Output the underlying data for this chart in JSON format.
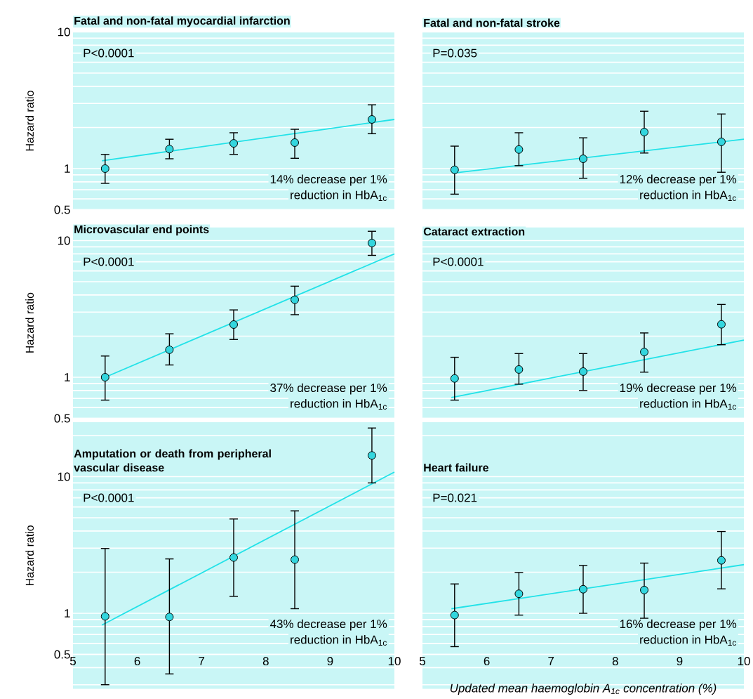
{
  "chart_data": [
    {
      "type": "scatter",
      "title": "Fatal and non-fatal myocardial infarction",
      "ylabel": "Hazard ratio",
      "annotations": [
        "P<0.0001",
        "14% decrease per 1%",
        "reduction in HbA$_{1c}$"
      ],
      "x": [
        5.5,
        6.5,
        7.5,
        8.45,
        9.65
      ],
      "xlim": [
        5,
        10
      ],
      "xticks": [
        5,
        6,
        7,
        8,
        9,
        10
      ],
      "ylim": [
        0.5,
        10
      ],
      "yticks": [
        0.5,
        1,
        10
      ],
      "log": "y",
      "grid": "y",
      "marker": "circle",
      "tick_labels": "y",
      "series": [
        {
          "color": "#33d6de",
          "values": [
            1.0,
            1.39,
            1.53,
            1.55,
            2.29
          ],
          "errors": [
            [
              0.78,
              1.27
            ],
            [
              1.18,
              1.64
            ],
            [
              1.27,
              1.83
            ],
            [
              1.19,
              1.94
            ],
            [
              1.8,
              2.93
            ]
          ]
        },
        {
          "type": "line",
          "color": "#22e2e8",
          "line_style": "solid",
          "marker": "none",
          "x": [
            5.45,
            10
          ],
          "values": [
            1.14,
            2.29
          ]
        }
      ]
    },
    {
      "type": "scatter",
      "title": "Fatal and non-fatal stroke",
      "annotations": [
        "P=0.035",
        "12% decrease per 1%",
        "reduction in HbA$_{1c}$"
      ],
      "x": [
        5.5,
        6.5,
        7.5,
        8.45,
        9.65
      ],
      "xlim": [
        5,
        10
      ],
      "xticks": [
        5,
        6,
        7,
        8,
        9,
        10
      ],
      "ylim": [
        0.5,
        10
      ],
      "yticks": [
        0.5,
        1,
        10
      ],
      "log": "y",
      "grid": "y",
      "marker": "circle",
      "tick_labels": false,
      "series": [
        {
          "color": "#33d6de",
          "values": [
            0.98,
            1.38,
            1.18,
            1.85,
            1.57
          ],
          "errors": [
            [
              0.65,
              1.46
            ],
            [
              1.05,
              1.83
            ],
            [
              0.85,
              1.68
            ],
            [
              1.3,
              2.63
            ],
            [
              0.94,
              2.51
            ]
          ]
        },
        {
          "type": "line",
          "color": "#22e2e8",
          "line_style": "solid",
          "marker": "none",
          "x": [
            5.5,
            10
          ],
          "values": [
            0.93,
            1.64
          ]
        }
      ]
    },
    {
      "type": "scatter",
      "title": "Microvascular end points",
      "ylabel": "Hazard ratio",
      "annotations": [
        "P<0.0001",
        "37% decrease per 1%",
        "reduction in HbA$_{1c}$"
      ],
      "x": [
        5.5,
        6.5,
        7.5,
        8.45,
        9.65
      ],
      "xlim": [
        5,
        10
      ],
      "xticks": [
        5,
        6,
        7,
        8,
        9,
        10
      ],
      "ylim": [
        0.5,
        12.5
      ],
      "yticks": [
        0.5,
        1,
        10
      ],
      "log": "y",
      "grid": "y",
      "marker": "circle",
      "tick_labels": "y",
      "series": [
        {
          "color": "#33d6de",
          "values": [
            1.0,
            1.59,
            2.43,
            3.69,
            9.6
          ],
          "errors": [
            [
              0.68,
              1.43
            ],
            [
              1.23,
              2.08
            ],
            [
              1.89,
              3.11
            ],
            [
              2.87,
              4.64
            ],
            [
              7.8,
              11.7
            ]
          ]
        },
        {
          "type": "line",
          "color": "#22e2e8",
          "line_style": "solid",
          "marker": "none",
          "x": [
            5.5,
            10
          ],
          "values": [
            1.0,
            8.0
          ]
        }
      ]
    },
    {
      "type": "scatter",
      "title": "Cataract extraction",
      "annotations": [
        "P<0.0001",
        "19% decrease per 1%",
        "reduction in HbA$_{1c}$"
      ],
      "x": [
        5.5,
        6.5,
        7.5,
        8.45,
        9.65
      ],
      "xlim": [
        5,
        10
      ],
      "xticks": [
        5,
        6,
        7,
        8,
        9,
        10
      ],
      "ylim": [
        0.5,
        12.5
      ],
      "yticks": [
        0.5,
        1,
        10
      ],
      "log": "y",
      "grid": "y",
      "marker": "circle",
      "tick_labels": false,
      "series": [
        {
          "color": "#33d6de",
          "values": [
            0.98,
            1.14,
            1.1,
            1.53,
            2.44
          ],
          "errors": [
            [
              0.68,
              1.4
            ],
            [
              0.89,
              1.49
            ],
            [
              0.8,
              1.49
            ],
            [
              1.09,
              2.11
            ],
            [
              1.73,
              3.41
            ]
          ]
        },
        {
          "type": "line",
          "color": "#22e2e8",
          "line_style": "solid",
          "marker": "none",
          "x": [
            5.45,
            10
          ],
          "values": [
            0.71,
            1.87
          ]
        }
      ]
    },
    {
      "type": "scatter",
      "title": "Amputation or death from peripheral vascular disease",
      "ylabel": "Hazard ratio",
      "annotations": [
        "P<0.0001",
        "43% decrease per 1%",
        "reduction in HbA$_{1c}$"
      ],
      "x": [
        5.5,
        6.5,
        7.5,
        8.45,
        9.65
      ],
      "xlim": [
        5,
        10
      ],
      "xticks": [
        5,
        6,
        7,
        8,
        9,
        10
      ],
      "ylim": [
        0.28,
        25
      ],
      "yticks": [
        0.5,
        1,
        10
      ],
      "log": "y",
      "grid": "y",
      "marker": "circle",
      "series": [
        {
          "color": "#33d6de",
          "values": [
            0.95,
            0.94,
            2.56,
            2.47,
            14.3
          ],
          "errors": [
            [
              0.3,
              2.98
            ],
            [
              0.36,
              2.5
            ],
            [
              1.33,
              4.9
            ],
            [
              1.08,
              5.62
            ],
            [
              9.0,
              22.7
            ]
          ]
        },
        {
          "type": "line",
          "color": "#22e2e8",
          "line_style": "solid",
          "marker": "none",
          "x": [
            5.45,
            10
          ],
          "values": [
            0.82,
            10.8
          ]
        }
      ]
    },
    {
      "type": "scatter",
      "title": "Heart failure",
      "xlabel": "Updated mean haemoglobin A$_{1c}$ concentration (%)",
      "annotations": [
        "P=0.021",
        "16% decrease per 1%",
        "reduction in HbA$_{1c}$"
      ],
      "x": [
        5.5,
        6.5,
        7.5,
        8.45,
        9.65
      ],
      "xlim": [
        5,
        10
      ],
      "xticks": [
        5,
        6,
        7,
        8,
        9,
        10
      ],
      "ylim": [
        0.28,
        25
      ],
      "yticks": [
        0.5,
        1,
        10
      ],
      "log": "y",
      "grid": "y",
      "marker": "circle",
      "tick_labels": "x",
      "series": [
        {
          "color": "#33d6de",
          "values": [
            0.97,
            1.39,
            1.5,
            1.48,
            2.44
          ],
          "errors": [
            [
              0.57,
              1.64
            ],
            [
              0.97,
              1.99
            ],
            [
              1.0,
              2.24
            ],
            [
              0.92,
              2.33
            ],
            [
              1.51,
              3.97
            ]
          ]
        },
        {
          "type": "line",
          "color": "#22e2e8",
          "line_style": "solid",
          "marker": "none",
          "x": [
            5.45,
            10
          ],
          "values": [
            1.08,
            2.27
          ]
        }
      ]
    }
  ]
}
